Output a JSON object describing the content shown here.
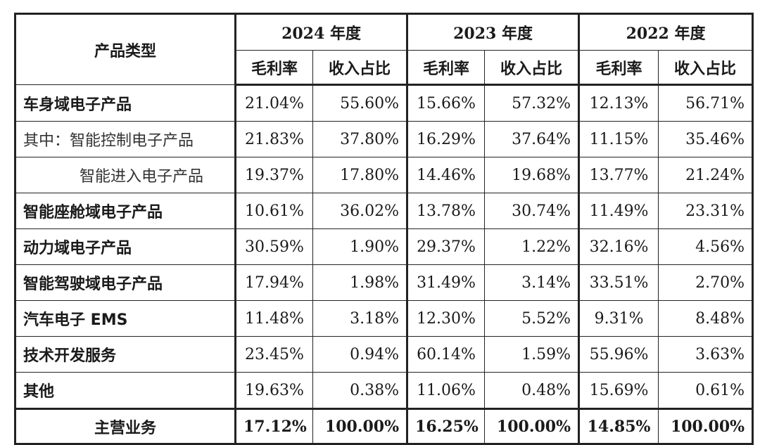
{
  "header": {
    "category_label": "产品类型",
    "years": [
      "2024 年度",
      "2023 年度",
      "2022 年度"
    ],
    "sub_labels": [
      "毛利率",
      "收入占比"
    ]
  },
  "rows": [
    {
      "name": "车身域电子产品",
      "style": "bold",
      "values": [
        "21.04%",
        "55.60%",
        "15.66%",
        "57.32%",
        "12.13%",
        "56.71%"
      ]
    },
    {
      "name": "其中：智能控制电子产品",
      "style": "normal",
      "values": [
        "21.83%",
        "37.80%",
        "16.29%",
        "37.64%",
        "11.15%",
        "35.46%"
      ]
    },
    {
      "name": "智能进入电子产品",
      "style": "indent",
      "values": [
        "19.37%",
        "17.80%",
        "14.46%",
        "19.68%",
        "13.77%",
        "21.24%"
      ]
    },
    {
      "name": "智能座舱域电子产品",
      "style": "bold",
      "values": [
        "10.61%",
        "36.02%",
        "13.78%",
        "30.74%",
        "11.49%",
        "23.31%"
      ]
    },
    {
      "name": "动力域电子产品",
      "style": "bold",
      "values": [
        "30.59%",
        "1.90%",
        "29.37%",
        "1.22%",
        "32.16%",
        "4.56%"
      ]
    },
    {
      "name": "智能驾驶域电子产品",
      "style": "bold",
      "values": [
        "17.94%",
        "1.98%",
        "31.49%",
        "3.14%",
        "33.51%",
        "2.70%"
      ]
    },
    {
      "name": "汽车电子 EMS",
      "style": "bold",
      "values": [
        "11.48%",
        "3.18%",
        "12.30%",
        "5.52%",
        "9.31%",
        "8.48%"
      ]
    },
    {
      "name": "技术开发服务",
      "style": "bold",
      "values": [
        "23.45%",
        "0.94%",
        "60.14%",
        "1.59%",
        "55.96%",
        "3.63%"
      ]
    },
    {
      "name": "其他",
      "style": "bold",
      "values": [
        "19.63%",
        "0.38%",
        "11.06%",
        "0.48%",
        "15.69%",
        "0.61%"
      ]
    }
  ],
  "total": {
    "name": "主营业务",
    "values": [
      "17.12%",
      "100.00%",
      "16.25%",
      "100.00%",
      "14.85%",
      "100.00%"
    ]
  }
}
